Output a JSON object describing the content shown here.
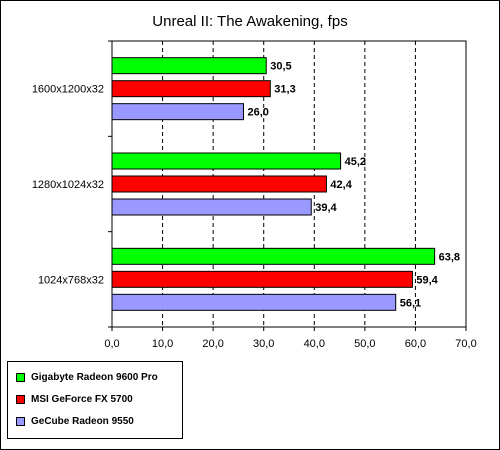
{
  "chart_data": {
    "type": "bar",
    "orientation": "horizontal",
    "title": "Unreal II: The Awakening, fps",
    "categories": [
      "1600x1200x32",
      "1280x1024x32",
      "1024x768x32"
    ],
    "series": [
      {
        "name": "Gigabyte Radeon 9600 Pro",
        "color": "#00ff00",
        "values": [
          30.5,
          45.2,
          63.8
        ],
        "labels": [
          "30,5",
          "45,2",
          "63,8"
        ]
      },
      {
        "name": "MSI GeForce FX 5700",
        "color": "#ff0000",
        "values": [
          31.3,
          42.4,
          59.4
        ],
        "labels": [
          "31,3",
          "42,4",
          "59,4"
        ]
      },
      {
        "name": "GeCube Radeon 9550",
        "color": "#9999ff",
        "values": [
          26.0,
          39.4,
          56.1
        ],
        "labels": [
          "26,0",
          "39,4",
          "56,1"
        ]
      }
    ],
    "xlim": [
      0,
      70
    ],
    "ticks": [
      0,
      10,
      20,
      30,
      40,
      50,
      60,
      70
    ],
    "tick_labels": [
      "0,0",
      "10,0",
      "20,0",
      "30,0",
      "40,0",
      "50,0",
      "60,0",
      "70,0"
    ],
    "grid": "vertical dashed",
    "legend_position": "bottom-left"
  }
}
